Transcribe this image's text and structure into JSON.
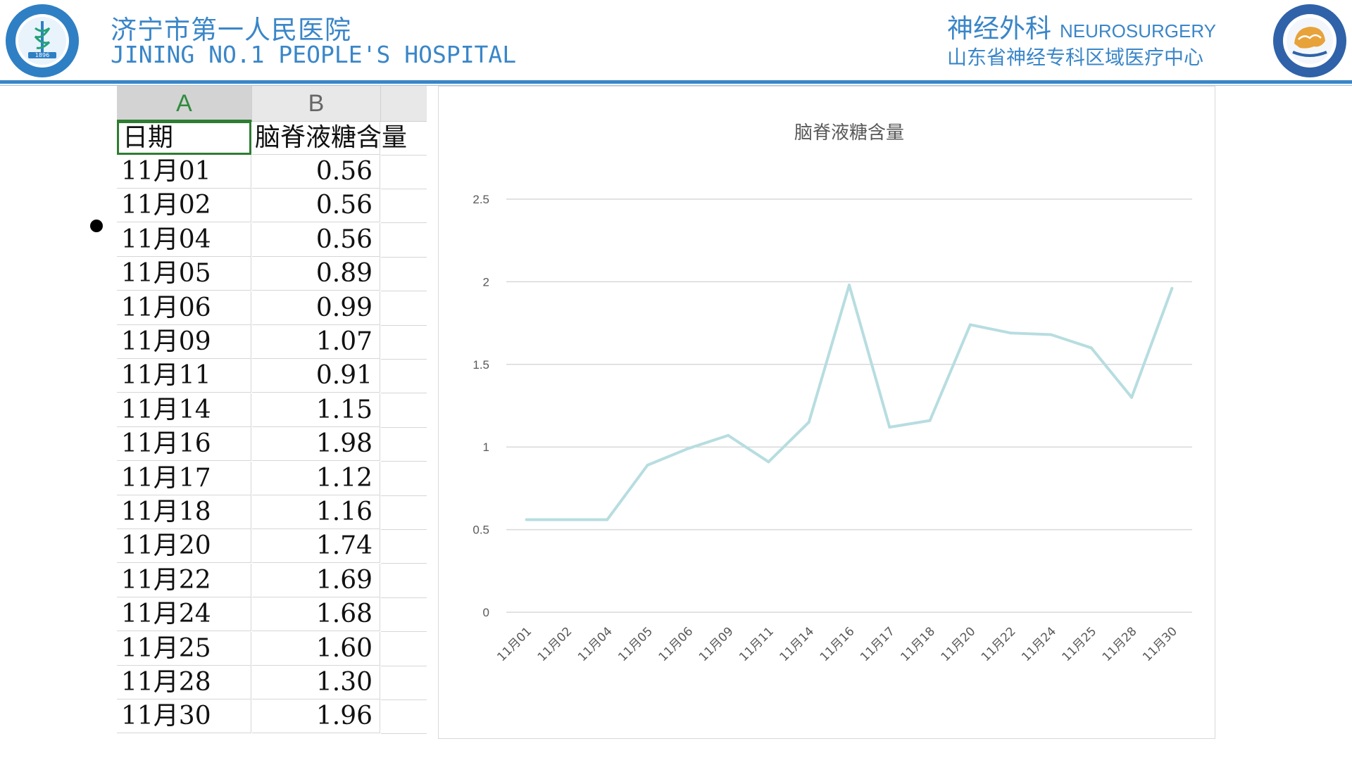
{
  "header": {
    "hospital_cn": "济宁市第一人民医院",
    "hospital_en": "JINING NO.1 PEOPLE'S HOSPITAL",
    "department_cn": "神经外科",
    "department_en": "NEUROSURGERY",
    "department_sub": "山东省神经专科区域医疗中心",
    "logo_left_year": "1896",
    "colors": {
      "brand": "#3a86c8"
    }
  },
  "sheet": {
    "col_a": "A",
    "col_b": "B",
    "header_a": "日期",
    "header_b": "脑脊液糖含量",
    "rows": [
      {
        "date": "11月01",
        "value": "0.56"
      },
      {
        "date": "11月02",
        "value": "0.56"
      },
      {
        "date": "11月04",
        "value": "0.56"
      },
      {
        "date": "11月05",
        "value": "0.89"
      },
      {
        "date": "11月06",
        "value": "0.99"
      },
      {
        "date": "11月09",
        "value": "1.07"
      },
      {
        "date": "11月11",
        "value": "0.91"
      },
      {
        "date": "11月14",
        "value": "1.15"
      },
      {
        "date": "11月16",
        "value": "1.98"
      },
      {
        "date": "11月17",
        "value": "1.12"
      },
      {
        "date": "11月18",
        "value": "1.16"
      },
      {
        "date": "11月20",
        "value": "1.74"
      },
      {
        "date": "11月22",
        "value": "1.69"
      },
      {
        "date": "11月24",
        "value": "1.68"
      },
      {
        "date": "11月25",
        "value": "1.60"
      },
      {
        "date": "11月28",
        "value": "1.30"
      },
      {
        "date": "11月30",
        "value": "1.96"
      }
    ]
  },
  "chart_data": {
    "type": "line",
    "title": "脑脊液糖含量",
    "xlabel": "",
    "ylabel": "",
    "categories": [
      "11月01",
      "11月02",
      "11月04",
      "11月05",
      "11月06",
      "11月09",
      "11月11",
      "11月14",
      "11月16",
      "11月17",
      "11月18",
      "11月20",
      "11月22",
      "11月24",
      "11月25",
      "11月28",
      "11月30"
    ],
    "values": [
      0.56,
      0.56,
      0.56,
      0.89,
      0.99,
      1.07,
      0.91,
      1.15,
      1.98,
      1.12,
      1.16,
      1.74,
      1.69,
      1.68,
      1.6,
      1.3,
      1.96
    ],
    "ylim": [
      0,
      2.5
    ],
    "yticks": [
      "0",
      "0.5",
      "1",
      "1.5",
      "2",
      "2.5"
    ],
    "grid": true,
    "legend": "none",
    "colors": {
      "line": "#b7dde0",
      "grid": "#d9d9d9",
      "text": "#595959"
    }
  }
}
